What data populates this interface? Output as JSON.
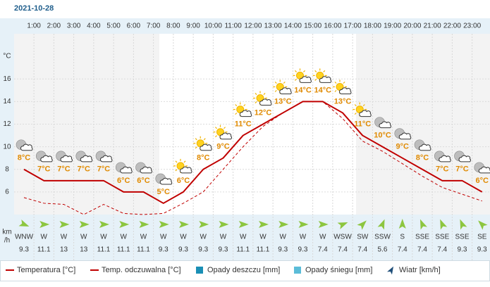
{
  "date": "2021-10-28",
  "chart_data": {
    "type": "line",
    "hour_labels": [
      "1:00",
      "2:00",
      "3:00",
      "4:00",
      "5:00",
      "6:00",
      "7:00",
      "8:00",
      "9:00",
      "10:00",
      "11:00",
      "12:00",
      "13:00",
      "14:00",
      "15:00",
      "16:00",
      "17:00",
      "18:00",
      "19:00",
      "20:00",
      "21:00",
      "22:00",
      "23:00"
    ],
    "y_label": "°C",
    "ylim": [
      4,
      20
    ],
    "yticks": [
      6,
      8,
      10,
      12,
      14,
      16
    ],
    "grid": true,
    "series": [
      {
        "name": "Temperatura [°C]",
        "color": "#c00000",
        "values": [
          8,
          7,
          7,
          7,
          7,
          6,
          6,
          5,
          6,
          8,
          9,
          11,
          12,
          13,
          14,
          14,
          13,
          11,
          10,
          9,
          8,
          7,
          7,
          6
        ],
        "value_labels": [
          "8°C",
          "7°C",
          "7°C",
          "7°C",
          "7°C",
          "6°C",
          "6°C",
          "5°C",
          "6°C",
          "8°C",
          "9°C",
          "11°C",
          "12°C",
          "13°C",
          "14°C",
          "14°C",
          "13°C",
          "11°C",
          "10°C",
          "9°C",
          "8°C",
          "7°C",
          "7°C",
          "6°C"
        ]
      },
      {
        "name": "Temp. odczuwalna [°C]",
        "color": "#c00000",
        "dashed": true,
        "values": [
          5.5,
          5,
          4.9,
          4,
          4.9,
          4.1,
          4,
          4.1,
          5,
          6,
          8,
          10,
          11.8,
          13,
          14,
          14,
          12.5,
          10.5,
          9.6,
          8.5,
          7.4,
          6.4,
          5.8,
          5.2
        ]
      }
    ],
    "precipitation_legend": [
      {
        "name": "Opady deszczu [mm]",
        "color": "#1a8fb5"
      },
      {
        "name": "Opady śniegu [mm]",
        "color": "#5bbcd8"
      }
    ],
    "wind": {
      "name": "Wiatr [km/h]",
      "unit": [
        "km",
        "/h"
      ],
      "color": "#8dc63f",
      "directions": [
        "WNW",
        "W",
        "W",
        "W",
        "W",
        "W",
        "W",
        "W",
        "W",
        "W",
        "W",
        "W",
        "W",
        "W",
        "W",
        "W",
        "WSW",
        "SW",
        "SSW",
        "S",
        "SSE",
        "SSE",
        "SSE",
        "SE"
      ],
      "speeds": [
        9.3,
        11.1,
        13,
        13,
        11.1,
        11.1,
        11.1,
        9.3,
        9.3,
        9.3,
        9.3,
        11.1,
        11.1,
        9.3,
        9.3,
        7.4,
        7.4,
        7.4,
        5.6,
        7.4,
        7.4,
        7.4,
        9.3,
        9.3
      ]
    }
  }
}
